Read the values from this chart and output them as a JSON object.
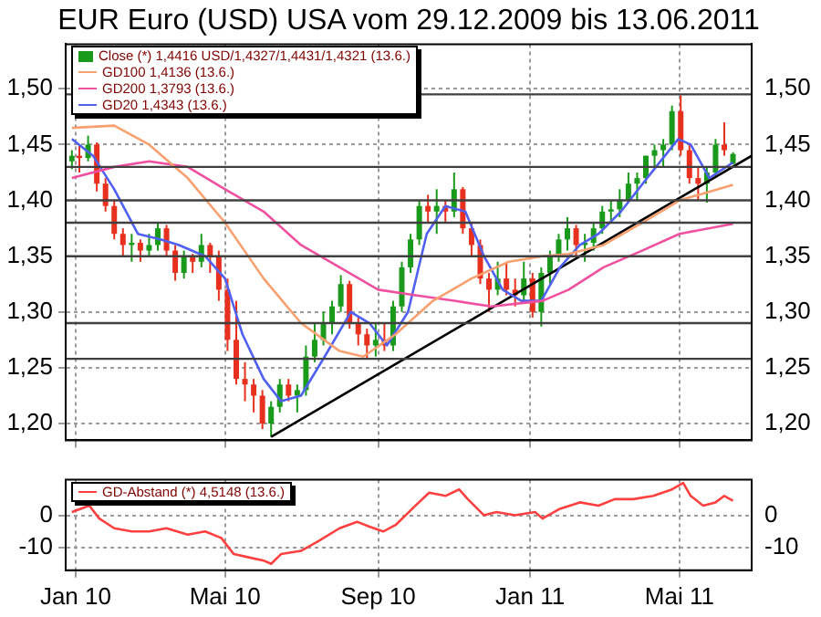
{
  "chart_data": [
    {
      "type": "candlestick",
      "title": "EUR Euro (USD) USA vom 29.12.2009 bis 13.06.2011",
      "legend": "top left",
      "grid": true,
      "tick_labels": "y",
      "xlim": [
        "2009-12-24",
        "2011-06-28"
      ],
      "xticks": [
        {
          "value": "2010-01-01",
          "label": null
        },
        {
          "value": "2010-05-01",
          "label": null
        },
        {
          "value": "2010-09-01",
          "label": null
        },
        {
          "value": "2011-01-01",
          "label": null
        },
        {
          "value": "2011-05-01",
          "label": null
        }
      ],
      "ylim": [
        1.185,
        1.54
      ],
      "yticks": [
        {
          "value": 1.2,
          "label": "1,20"
        },
        {
          "value": 1.25,
          "label": "1,25"
        },
        {
          "value": 1.3,
          "label": "1,30"
        },
        {
          "value": 1.35,
          "label": "1,35"
        },
        {
          "value": 1.4,
          "label": "1,40"
        },
        {
          "value": 1.45,
          "label": "1,45"
        },
        {
          "value": 1.5,
          "label": "1,50"
        }
      ],
      "y2lim": [
        1.185,
        1.54
      ],
      "y2ticks": [
        {
          "value": 1.2,
          "label": "1,20"
        },
        {
          "value": 1.25,
          "label": "1,25"
        },
        {
          "value": 1.3,
          "label": "1,30"
        },
        {
          "value": 1.35,
          "label": "1,35"
        },
        {
          "value": 1.4,
          "label": "1,40"
        },
        {
          "value": 1.45,
          "label": "1,45"
        },
        {
          "value": 1.5,
          "label": "1,50"
        }
      ],
      "series": [
        {
          "name": "Close (*) 1,4416 USD/1,4327/1,4431/1,4321 (13.6.)",
          "x": [
            "2009-12-29",
            "2010-01-04",
            "2010-01-11",
            "2010-01-18",
            "2010-01-25",
            "2010-02-01",
            "2010-02-08",
            "2010-02-15",
            "2010-02-22",
            "2010-03-01",
            "2010-03-08",
            "2010-03-15",
            "2010-03-22",
            "2010-03-29",
            "2010-04-05",
            "2010-04-12",
            "2010-04-19",
            "2010-04-26",
            "2010-05-03",
            "2010-05-10",
            "2010-05-17",
            "2010-05-24",
            "2010-05-31",
            "2010-06-07",
            "2010-06-14",
            "2010-06-21",
            "2010-06-28",
            "2010-07-05",
            "2010-07-12",
            "2010-07-19",
            "2010-07-26",
            "2010-08-02",
            "2010-08-09",
            "2010-08-16",
            "2010-08-23",
            "2010-08-30",
            "2010-09-06",
            "2010-09-13",
            "2010-09-20",
            "2010-09-27",
            "2010-10-04",
            "2010-10-11",
            "2010-10-18",
            "2010-10-25",
            "2010-11-01",
            "2010-11-08",
            "2010-11-15",
            "2010-11-22",
            "2010-11-29",
            "2010-12-06",
            "2010-12-13",
            "2010-12-20",
            "2010-12-27",
            "2011-01-03",
            "2011-01-10",
            "2011-01-17",
            "2011-01-24",
            "2011-01-31",
            "2011-02-07",
            "2011-02-14",
            "2011-02-21",
            "2011-02-28",
            "2011-03-07",
            "2011-03-14",
            "2011-03-21",
            "2011-03-28",
            "2011-04-04",
            "2011-04-11",
            "2011-04-18",
            "2011-04-25",
            "2011-05-02",
            "2011-05-09",
            "2011-05-16",
            "2011-05-23",
            "2011-05-30",
            "2011-06-06",
            "2011-06-13"
          ],
          "ohlc": [
            [
              1.435,
              1.445,
              1.428,
              1.44
            ],
            [
              1.44,
              1.45,
              1.425,
              1.438
            ],
            [
              1.438,
              1.458,
              1.435,
              1.45
            ],
            [
              1.45,
              1.452,
              1.408,
              1.415
            ],
            [
              1.415,
              1.42,
              1.39,
              1.395
            ],
            [
              1.395,
              1.4,
              1.365,
              1.37
            ],
            [
              1.37,
              1.375,
              1.35,
              1.36
            ],
            [
              1.36,
              1.37,
              1.345,
              1.362
            ],
            [
              1.362,
              1.365,
              1.345,
              1.355
            ],
            [
              1.355,
              1.37,
              1.35,
              1.36
            ],
            [
              1.36,
              1.38,
              1.355,
              1.375
            ],
            [
              1.375,
              1.378,
              1.35,
              1.355
            ],
            [
              1.355,
              1.36,
              1.328,
              1.335
            ],
            [
              1.335,
              1.355,
              1.33,
              1.35
            ],
            [
              1.35,
              1.352,
              1.335,
              1.345
            ],
            [
              1.345,
              1.37,
              1.34,
              1.36
            ],
            [
              1.36,
              1.362,
              1.335,
              1.35
            ],
            [
              1.35,
              1.355,
              1.31,
              1.32
            ],
            [
              1.32,
              1.33,
              1.265,
              1.275
            ],
            [
              1.275,
              1.31,
              1.235,
              1.24
            ],
            [
              1.24,
              1.255,
              1.22,
              1.235
            ],
            [
              1.235,
              1.24,
              1.21,
              1.225
            ],
            [
              1.225,
              1.23,
              1.195,
              1.2
            ],
            [
              1.2,
              1.22,
              1.188,
              1.215
            ],
            [
              1.215,
              1.24,
              1.21,
              1.235
            ],
            [
              1.235,
              1.24,
              1.22,
              1.225
            ],
            [
              1.225,
              1.235,
              1.21,
              1.23
            ],
            [
              1.23,
              1.27,
              1.225,
              1.26
            ],
            [
              1.26,
              1.29,
              1.255,
              1.275
            ],
            [
              1.275,
              1.3,
              1.27,
              1.29
            ],
            [
              1.29,
              1.31,
              1.28,
              1.305
            ],
            [
              1.305,
              1.333,
              1.3,
              1.325
            ],
            [
              1.325,
              1.328,
              1.285,
              1.29
            ],
            [
              1.29,
              1.295,
              1.27,
              1.28
            ],
            [
              1.28,
              1.285,
              1.258,
              1.27
            ],
            [
              1.27,
              1.29,
              1.26,
              1.275
            ],
            [
              1.275,
              1.29,
              1.265,
              1.27
            ],
            [
              1.27,
              1.31,
              1.265,
              1.305
            ],
            [
              1.305,
              1.345,
              1.3,
              1.34
            ],
            [
              1.34,
              1.37,
              1.335,
              1.365
            ],
            [
              1.365,
              1.4,
              1.36,
              1.395
            ],
            [
              1.395,
              1.405,
              1.38,
              1.39
            ],
            [
              1.39,
              1.41,
              1.37,
              1.395
            ],
            [
              1.395,
              1.4,
              1.38,
              1.39
            ],
            [
              1.39,
              1.425,
              1.385,
              1.41
            ],
            [
              1.41,
              1.412,
              1.37,
              1.375
            ],
            [
              1.375,
              1.38,
              1.35,
              1.36
            ],
            [
              1.36,
              1.365,
              1.325,
              1.33
            ],
            [
              1.33,
              1.335,
              1.3,
              1.32
            ],
            [
              1.32,
              1.345,
              1.315,
              1.33
            ],
            [
              1.33,
              1.345,
              1.315,
              1.32
            ],
            [
              1.32,
              1.33,
              1.305,
              1.315
            ],
            [
              1.315,
              1.345,
              1.31,
              1.33
            ],
            [
              1.33,
              1.335,
              1.295,
              1.3
            ],
            [
              1.3,
              1.34,
              1.287,
              1.335
            ],
            [
              1.335,
              1.355,
              1.325,
              1.35
            ],
            [
              1.35,
              1.37,
              1.345,
              1.365
            ],
            [
              1.365,
              1.385,
              1.355,
              1.375
            ],
            [
              1.375,
              1.378,
              1.35,
              1.36
            ],
            [
              1.36,
              1.37,
              1.345,
              1.362
            ],
            [
              1.362,
              1.38,
              1.355,
              1.375
            ],
            [
              1.375,
              1.395,
              1.37,
              1.39
            ],
            [
              1.39,
              1.4,
              1.38,
              1.392
            ],
            [
              1.392,
              1.41,
              1.385,
              1.4
            ],
            [
              1.4,
              1.425,
              1.4,
              1.415
            ],
            [
              1.415,
              1.425,
              1.4,
              1.42
            ],
            [
              1.42,
              1.44,
              1.415,
              1.44
            ],
            [
              1.44,
              1.45,
              1.43,
              1.445
            ],
            [
              1.445,
              1.455,
              1.43,
              1.45
            ],
            [
              1.45,
              1.485,
              1.445,
              1.48
            ],
            [
              1.48,
              1.494,
              1.44,
              1.445
            ],
            [
              1.445,
              1.45,
              1.415,
              1.42
            ],
            [
              1.42,
              1.43,
              1.4,
              1.415
            ],
            [
              1.415,
              1.43,
              1.398,
              1.425
            ],
            [
              1.425,
              1.455,
              1.42,
              1.45
            ],
            [
              1.45,
              1.47,
              1.44,
              1.445
            ],
            [
              1.4327,
              1.4431,
              1.4321,
              1.4416
            ]
          ],
          "colors": [
            "#1a9a1a",
            "#e8301e",
            "#1a9a1a",
            "#e8301e",
            "#e8301e",
            "#e8301e",
            "#e8301e",
            "#1a9a1a",
            "#e8301e",
            "#1a9a1a",
            "#1a9a1a",
            "#e8301e",
            "#e8301e",
            "#1a9a1a",
            "#e8301e",
            "#1a9a1a",
            "#e8301e",
            "#e8301e",
            "#e8301e",
            "#e8301e",
            "#e8301e",
            "#e8301e",
            "#e8301e",
            "#1a9a1a",
            "#1a9a1a",
            "#e8301e",
            "#1a9a1a",
            "#1a9a1a",
            "#1a9a1a",
            "#1a9a1a",
            "#1a9a1a",
            "#1a9a1a",
            "#e8301e",
            "#e8301e",
            "#e8301e",
            "#1a9a1a",
            "#e8301e",
            "#1a9a1a",
            "#1a9a1a",
            "#1a9a1a",
            "#1a9a1a",
            "#e8301e",
            "#1a9a1a",
            "#e8301e",
            "#1a9a1a",
            "#e8301e",
            "#e8301e",
            "#e8301e",
            "#e8301e",
            "#1a9a1a",
            "#e8301e",
            "#e8301e",
            "#1a9a1a",
            "#e8301e",
            "#1a9a1a",
            "#1a9a1a",
            "#1a9a1a",
            "#1a9a1a",
            "#e8301e",
            "#1a9a1a",
            "#1a9a1a",
            "#1a9a1a",
            "#1a9a1a",
            "#1a9a1a",
            "#1a9a1a",
            "#1a9a1a",
            "#1a9a1a",
            "#1a9a1a",
            "#1a9a1a",
            "#1a9a1a",
            "#e8301e",
            "#e8301e",
            "#e8301e",
            "#1a9a1a",
            "#1a9a1a",
            "#e8301e",
            "#1a9a1a"
          ]
        },
        {
          "name": "GD100 1,4136 (13.6.)",
          "type": "line",
          "color": "#f8a070",
          "x": [
            "2009-12-29",
            "2010-02-01",
            "2010-03-01",
            "2010-04-01",
            "2010-05-01",
            "2010-06-01",
            "2010-07-01",
            "2010-08-01",
            "2010-08-20",
            "2010-09-15",
            "2010-10-15",
            "2010-11-15",
            "2010-12-15",
            "2011-01-11",
            "2011-02-01",
            "2011-03-01",
            "2011-04-01",
            "2011-05-01",
            "2011-06-13"
          ],
          "values": [
            1.465,
            1.467,
            1.45,
            1.42,
            1.38,
            1.33,
            1.29,
            1.265,
            1.26,
            1.28,
            1.31,
            1.33,
            1.345,
            1.35,
            1.352,
            1.36,
            1.38,
            1.4,
            1.414
          ]
        },
        {
          "name": "GD200 1,3793 (13.6.)",
          "type": "line",
          "color": "#f050a0",
          "x": [
            "2009-12-29",
            "2010-02-01",
            "2010-03-01",
            "2010-04-01",
            "2010-05-01",
            "2010-06-01",
            "2010-07-01",
            "2010-08-01",
            "2010-09-01",
            "2010-10-01",
            "2010-11-01",
            "2010-12-01",
            "2011-01-11",
            "2011-02-01",
            "2011-03-01",
            "2011-04-01",
            "2011-05-01",
            "2011-06-13"
          ],
          "values": [
            1.42,
            1.43,
            1.435,
            1.43,
            1.41,
            1.39,
            1.36,
            1.34,
            1.32,
            1.315,
            1.31,
            1.305,
            1.31,
            1.32,
            1.34,
            1.355,
            1.37,
            1.379
          ]
        },
        {
          "name": "GD20 1,4343 (13.6.)",
          "type": "line",
          "color": "#5060f0",
          "x": [
            "2009-12-29",
            "2010-01-15",
            "2010-02-01",
            "2010-02-20",
            "2010-03-10",
            "2010-03-25",
            "2010-04-15",
            "2010-05-01",
            "2010-05-15",
            "2010-06-01",
            "2010-06-15",
            "2010-07-01",
            "2010-07-20",
            "2010-08-10",
            "2010-08-25",
            "2010-09-08",
            "2010-09-25",
            "2010-10-10",
            "2010-10-25",
            "2010-11-10",
            "2010-11-25",
            "2010-12-10",
            "2010-12-25",
            "2011-01-10",
            "2011-01-25",
            "2011-02-10",
            "2011-02-25",
            "2011-03-15",
            "2011-04-05",
            "2011-04-30",
            "2011-05-10",
            "2011-05-25",
            "2011-06-13"
          ],
          "values": [
            1.455,
            1.44,
            1.41,
            1.37,
            1.365,
            1.36,
            1.35,
            1.33,
            1.28,
            1.24,
            1.22,
            1.225,
            1.26,
            1.3,
            1.29,
            1.27,
            1.3,
            1.37,
            1.395,
            1.39,
            1.35,
            1.32,
            1.31,
            1.31,
            1.34,
            1.36,
            1.37,
            1.39,
            1.42,
            1.455,
            1.45,
            1.42,
            1.434
          ]
        },
        {
          "type": "line",
          "color": "#000000",
          "x": [
            "2010-06-07",
            "2011-06-28"
          ],
          "values": [
            1.188,
            1.44
          ]
        }
      ],
      "ref_lines": [
        {
          "axis": "y",
          "value": 1.495,
          "color": "#404040"
        },
        {
          "axis": "y",
          "value": 1.43,
          "color": "#404040"
        },
        {
          "axis": "y",
          "value": 1.4,
          "color": "#404040"
        },
        {
          "axis": "y",
          "value": 1.38,
          "color": "#404040"
        },
        {
          "axis": "y",
          "value": 1.35,
          "color": "#404040"
        },
        {
          "axis": "y",
          "value": 1.29,
          "color": "#404040"
        },
        {
          "axis": "y",
          "value": 1.258,
          "color": "#404040"
        }
      ]
    },
    {
      "type": "line",
      "legend": "top left",
      "grid": true,
      "xlim": [
        "2009-12-24",
        "2011-06-28"
      ],
      "xticks": [
        {
          "value": "2010-01-01",
          "label": "Jan 10"
        },
        {
          "value": "2010-05-01",
          "label": "Mai 10"
        },
        {
          "value": "2010-09-01",
          "label": "Sep 10"
        },
        {
          "value": "2011-01-01",
          "label": "Jan 11"
        },
        {
          "value": "2011-05-01",
          "label": "Mai 11"
        }
      ],
      "ylim": [
        -17,
        11
      ],
      "yticks": [
        -10,
        0
      ],
      "y2lim": [
        -17,
        11
      ],
      "y2ticks": [
        -10,
        0
      ],
      "series": [
        {
          "name": "GD-Abstand (*) 4,5148 (13.6.)",
          "color": "#ff4040",
          "x": [
            "2009-12-29",
            "2010-01-05",
            "2010-01-12",
            "2010-01-20",
            "2010-02-01",
            "2010-02-15",
            "2010-03-01",
            "2010-03-15",
            "2010-04-01",
            "2010-04-15",
            "2010-04-28",
            "2010-05-08",
            "2010-05-20",
            "2010-06-01",
            "2010-06-07",
            "2010-06-15",
            "2010-07-01",
            "2010-07-15",
            "2010-08-01",
            "2010-08-15",
            "2010-08-25",
            "2010-09-05",
            "2010-09-15",
            "2010-10-01",
            "2010-10-12",
            "2010-10-25",
            "2010-11-05",
            "2010-11-12",
            "2010-11-25",
            "2010-12-05",
            "2010-12-20",
            "2011-01-05",
            "2011-01-11",
            "2011-01-25",
            "2011-02-10",
            "2011-02-25",
            "2011-03-10",
            "2011-03-25",
            "2011-04-10",
            "2011-04-25",
            "2011-05-04",
            "2011-05-10",
            "2011-05-20",
            "2011-05-30",
            "2011-06-06",
            "2011-06-13"
          ],
          "values": [
            1,
            2,
            3,
            -1,
            -4,
            -5,
            -5,
            -4,
            -6,
            -5,
            -7,
            -12,
            -13,
            -14,
            -15,
            -12,
            -11,
            -8,
            -4,
            -2,
            -3.5,
            -5,
            -3,
            3,
            7,
            6,
            8,
            5,
            0,
            1,
            0,
            1,
            -1,
            2,
            4,
            3,
            5,
            5,
            6,
            8,
            10,
            6,
            3,
            4,
            6,
            4.5
          ]
        }
      ]
    }
  ]
}
